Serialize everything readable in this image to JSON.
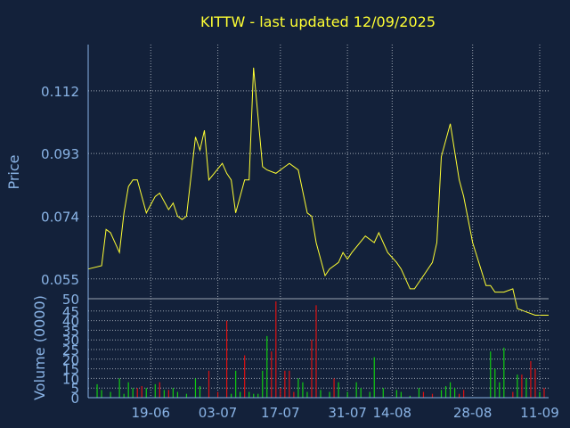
{
  "title": "KITTW - last updated 12/09/2025",
  "colors": {
    "background": "#13213a",
    "grid": "#9aa3b0",
    "axis": "#8ab4e6",
    "price_line": "#ffff33",
    "volume_up": "#11cc11",
    "volume_down": "#dd1111"
  },
  "chart_data": [
    {
      "type": "line",
      "ylabel": "Price",
      "ylim": [
        0.049,
        0.126
      ],
      "yticks": [
        "0.112",
        "0.093",
        "0.074",
        "0.055"
      ],
      "ytick_values": [
        0.112,
        0.093,
        0.074,
        0.055
      ],
      "grid": true,
      "xlim": [
        0,
        103
      ],
      "x": [
        0,
        3,
        4,
        5,
        7,
        8,
        9,
        10,
        11,
        12,
        13,
        15,
        16,
        18,
        19,
        20,
        21,
        22,
        24,
        25,
        26,
        27,
        30,
        31,
        32,
        33,
        35,
        36,
        37,
        39,
        40,
        42,
        43,
        44,
        45,
        47,
        49,
        50,
        51,
        53,
        54,
        56,
        57,
        58,
        59,
        62,
        64,
        65,
        67,
        69,
        70,
        72,
        73,
        74,
        75,
        77,
        78,
        79,
        81,
        83,
        84,
        86,
        89,
        90,
        91,
        92,
        93,
        95,
        96,
        98,
        100,
        101,
        102,
        103
      ],
      "values": [
        0.058,
        0.059,
        0.07,
        0.069,
        0.063,
        0.075,
        0.083,
        0.085,
        0.085,
        0.08,
        0.075,
        0.08,
        0.081,
        0.076,
        0.078,
        0.074,
        0.073,
        0.074,
        0.098,
        0.094,
        0.1,
        0.085,
        0.09,
        0.087,
        0.085,
        0.075,
        0.085,
        0.085,
        0.119,
        0.089,
        0.088,
        0.087,
        0.088,
        0.089,
        0.09,
        0.088,
        0.075,
        0.074,
        0.066,
        0.056,
        0.058,
        0.06,
        0.063,
        0.061,
        0.063,
        0.068,
        0.066,
        0.069,
        0.063,
        0.06,
        0.058,
        0.052,
        0.052,
        0.054,
        0.056,
        0.06,
        0.066,
        0.092,
        0.102,
        0.085,
        0.08,
        0.066,
        0.053,
        0.053,
        0.051,
        0.051,
        0.051,
        0.052,
        0.046,
        0.045,
        0.044,
        0.044,
        0.044,
        0.044
      ]
    },
    {
      "type": "bar",
      "ylabel": "Volume (0000)",
      "ylim": [
        0,
        50
      ],
      "yticks": [
        "45",
        "40",
        "35",
        "30",
        "25",
        "20",
        "15",
        "10",
        "5",
        "0"
      ],
      "ytick_values": [
        45,
        40,
        35,
        30,
        25,
        20,
        15,
        10,
        5,
        0
      ],
      "ytop_label": "50",
      "grid": true,
      "xlim": [
        0,
        103
      ],
      "xticks": [
        "19-06",
        "03-07",
        "17-07",
        "31-07",
        "14-08",
        "28-08",
        "11-09"
      ],
      "xtick_positions": [
        14,
        29,
        43,
        58,
        68,
        86,
        101
      ],
      "x": [
        2,
        3,
        5,
        7,
        8,
        9,
        10,
        11,
        12,
        13,
        15,
        16,
        17,
        18,
        19,
        20,
        22,
        24,
        25,
        27,
        29,
        31,
        32,
        33,
        34,
        35,
        36,
        37,
        38,
        39,
        40,
        41,
        42,
        43,
        44,
        45,
        46,
        47,
        48,
        49,
        50,
        51,
        52,
        54,
        55,
        56,
        58,
        60,
        61,
        63,
        64,
        66,
        69,
        70,
        72,
        74,
        75,
        77,
        79,
        80,
        81,
        82,
        83,
        84,
        90,
        91,
        92,
        93,
        95,
        96,
        97,
        98,
        99,
        100,
        101,
        102
      ],
      "values": [
        7,
        4,
        3,
        10,
        2,
        8,
        5,
        5,
        6,
        5,
        7,
        8,
        4,
        4,
        5,
        3,
        2,
        10,
        6,
        14,
        3,
        40,
        2,
        14,
        3,
        22,
        3,
        2,
        2,
        14,
        32,
        24,
        50,
        5,
        14,
        14,
        3,
        10,
        8,
        3,
        30,
        48,
        4,
        3,
        10,
        8,
        3,
        8,
        5,
        3,
        21,
        5,
        4,
        3,
        1,
        5,
        3,
        2,
        4,
        6,
        8,
        5,
        2,
        4,
        24,
        15,
        8,
        26,
        3,
        12,
        12,
        10,
        19,
        15,
        3,
        5
      ],
      "colors": [
        "up",
        "up",
        "up",
        "up",
        "up",
        "up",
        "up",
        "down",
        "down",
        "up",
        "up",
        "down",
        "up",
        "down",
        "up",
        "up",
        "up",
        "up",
        "up",
        "down",
        "down",
        "down",
        "up",
        "up",
        "up",
        "down",
        "up",
        "up",
        "up",
        "up",
        "up",
        "down",
        "down",
        "down",
        "down",
        "down",
        "down",
        "up",
        "up",
        "up",
        "down",
        "down",
        "up",
        "up",
        "down",
        "up",
        "up",
        "up",
        "up",
        "up",
        "up",
        "up",
        "up",
        "up",
        "up",
        "up",
        "down",
        "down",
        "up",
        "up",
        "up",
        "up",
        "down",
        "down",
        "up",
        "up",
        "up",
        "up",
        "down",
        "up",
        "down",
        "up",
        "down",
        "down",
        "up",
        "down"
      ]
    }
  ]
}
